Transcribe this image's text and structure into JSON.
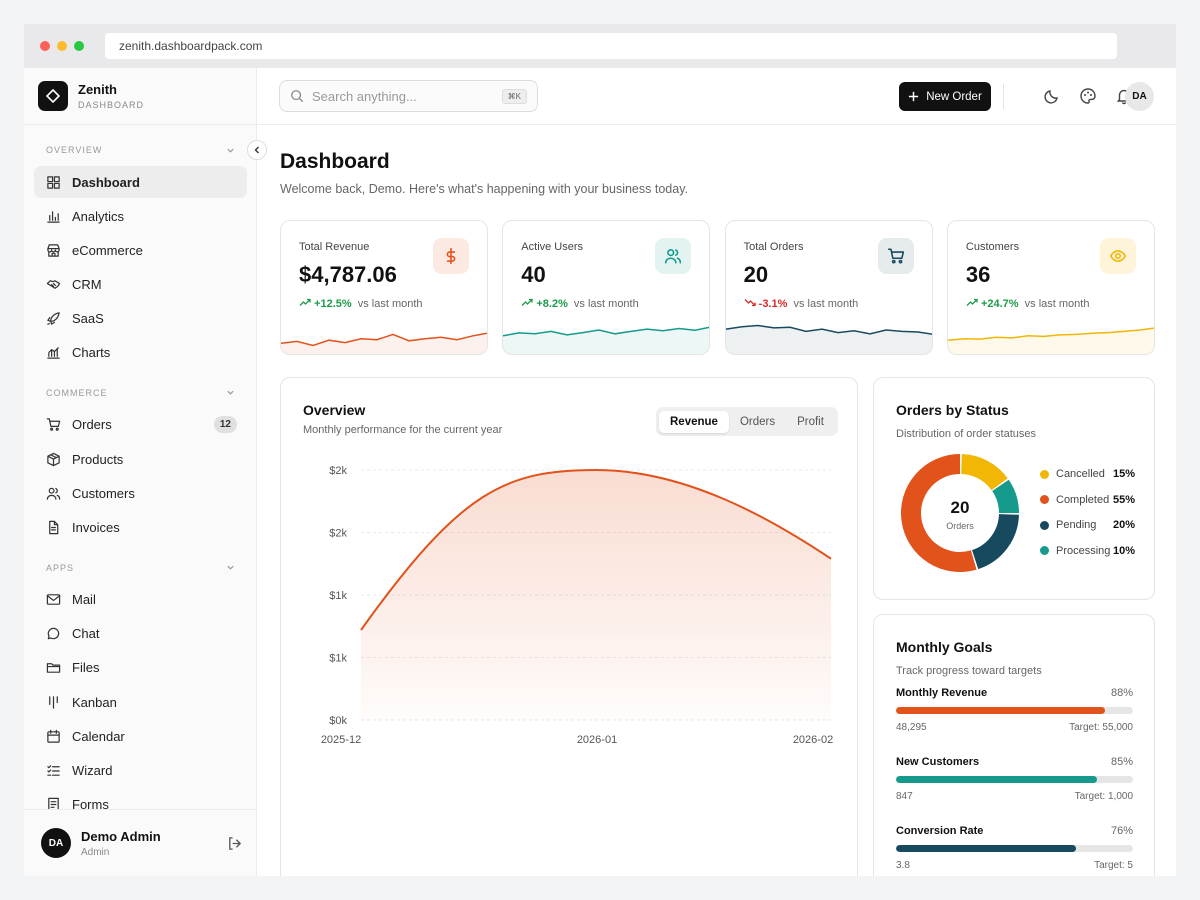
{
  "browser": {
    "url": "zenith.dashboardpack.com"
  },
  "brand": {
    "name": "Zenith",
    "subtitle": "DASHBOARD"
  },
  "sidebar": {
    "sections": [
      {
        "label": "OVERVIEW",
        "items": [
          {
            "label": "Dashboard",
            "icon": "grid-icon",
            "active": true
          },
          {
            "label": "Analytics",
            "icon": "bar-chart-icon"
          },
          {
            "label": "eCommerce",
            "icon": "store-icon"
          },
          {
            "label": "CRM",
            "icon": "handshake-icon"
          },
          {
            "label": "SaaS",
            "icon": "rocket-icon"
          },
          {
            "label": "Charts",
            "icon": "line-chart-icon"
          }
        ]
      },
      {
        "label": "COMMERCE",
        "items": [
          {
            "label": "Orders",
            "icon": "cart-icon",
            "badge": "12"
          },
          {
            "label": "Products",
            "icon": "box-icon"
          },
          {
            "label": "Customers",
            "icon": "users-icon"
          },
          {
            "label": "Invoices",
            "icon": "file-icon"
          }
        ]
      },
      {
        "label": "APPS",
        "items": [
          {
            "label": "Mail",
            "icon": "mail-icon"
          },
          {
            "label": "Chat",
            "icon": "chat-icon"
          },
          {
            "label": "Files",
            "icon": "folder-icon"
          },
          {
            "label": "Kanban",
            "icon": "kanban-icon"
          },
          {
            "label": "Calendar",
            "icon": "calendar-icon"
          },
          {
            "label": "Wizard",
            "icon": "checklist-icon"
          },
          {
            "label": "Forms",
            "icon": "form-icon"
          }
        ]
      }
    ],
    "user": {
      "initials": "DA",
      "name": "Demo Admin",
      "role": "Admin"
    }
  },
  "topbar": {
    "search_placeholder": "Search anything...",
    "search_shortcut": "⌘K",
    "new_order_label": "New Order",
    "avatar_initials": "DA"
  },
  "page": {
    "title": "Dashboard",
    "subtitle": "Welcome back, Demo. Here's what's happening with your business today."
  },
  "stats": [
    {
      "label": "Total Revenue",
      "value": "$4,787.06",
      "change": "+12.5%",
      "suffix": "vs last month",
      "direction": "up",
      "color": "#e2521b",
      "icon": "dollar-icon"
    },
    {
      "label": "Active Users",
      "value": "40",
      "change": "+8.2%",
      "suffix": "vs last month",
      "direction": "up",
      "color": "#159a8c",
      "icon": "users-icon"
    },
    {
      "label": "Total Orders",
      "value": "20",
      "change": "-3.1%",
      "suffix": "vs last month",
      "direction": "down",
      "color": "#1a4a5e",
      "icon": "cart-icon"
    },
    {
      "label": "Customers",
      "value": "36",
      "change": "+24.7%",
      "suffix": "vs last month",
      "direction": "up",
      "color": "#f2b705",
      "icon": "eye-icon"
    }
  ],
  "overview": {
    "title": "Overview",
    "subtitle": "Monthly performance for the current year",
    "tabs": [
      "Revenue",
      "Orders",
      "Profit"
    ],
    "active_tab": "Revenue"
  },
  "chart_data": {
    "type": "area",
    "title": "Overview",
    "x": [
      "2025-12",
      "2026-01",
      "2026-02"
    ],
    "y_tick_labels": [
      "$0k",
      "$1k",
      "$1k",
      "$2k",
      "$2k"
    ],
    "y_ticks": [
      0,
      500,
      1000,
      1500,
      2000
    ],
    "ylim": [
      0,
      2000
    ],
    "series": [
      {
        "values": [
          720,
          2000,
          1290
        ],
        "color": "#e2521b"
      }
    ],
    "grid": true
  },
  "orders_status": {
    "title": "Orders by Status",
    "subtitle": "Distribution of order statuses",
    "total": "20",
    "total_label": "Orders",
    "items": [
      {
        "label": "Cancelled",
        "percent": "15%",
        "value": 15,
        "color": "#f2b705"
      },
      {
        "label": "Completed",
        "percent": "55%",
        "value": 55,
        "color": "#e2521b"
      },
      {
        "label": "Pending",
        "percent": "20%",
        "value": 20,
        "color": "#174a5e"
      },
      {
        "label": "Processing",
        "percent": "10%",
        "value": 10,
        "color": "#159a8c"
      }
    ]
  },
  "goals": {
    "title": "Monthly Goals",
    "subtitle": "Track progress toward targets",
    "items": [
      {
        "label": "Monthly Revenue",
        "percent": "88%",
        "fill": 0.88,
        "current": "48,295",
        "target": "Target: 55,000",
        "color": "#e2521b"
      },
      {
        "label": "New Customers",
        "percent": "85%",
        "fill": 0.85,
        "current": "847",
        "target": "Target: 1,000",
        "color": "#159a8c"
      },
      {
        "label": "Conversion Rate",
        "percent": "76%",
        "fill": 0.76,
        "current": "3.8",
        "target": "Target: 5",
        "color": "#174a5e"
      }
    ]
  }
}
